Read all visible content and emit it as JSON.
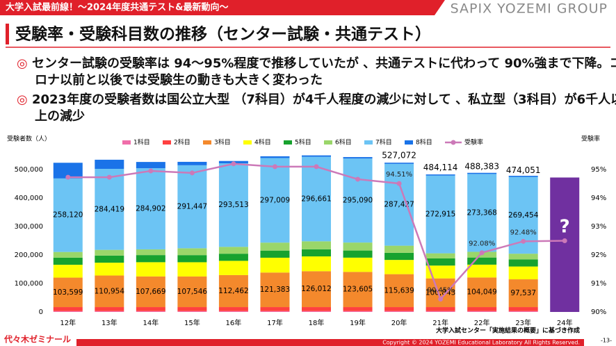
{
  "header": {
    "banner": "大学入試最前線！～2024年度共通テスト&最新動向～",
    "brand": "SAPIX YOZEMI GROUP"
  },
  "title": "受験率・受験科目数の推移（センター試験・共通テスト）",
  "bullets": [
    "センター試験の受験率は 94～95%程度で推移していたが 、共通テストに代わって 90%強まで下降。コロナ以前と以後では受験生の動きも大きく変わった",
    "2023年度の受験者数は国公立大型 （7科目）が4千人程度の減少に対して 、私立型（3科目）が6千人以上の減少"
  ],
  "chart_data": {
    "type": "bar",
    "stacked": true,
    "y_label": "受験者数（人）",
    "y2_label": "受験率",
    "categories": [
      "12年",
      "13年",
      "14年",
      "15年",
      "16年",
      "17年",
      "18年",
      "19年",
      "20年",
      "21年",
      "22年",
      "23年",
      "24年"
    ],
    "ylim": [
      0,
      560000
    ],
    "yticks": [
      0,
      {
        "value": 100000,
        "label": "100,000"
      },
      {
        "value": 200000,
        "label": "200,000"
      },
      {
        "value": 300000,
        "label": "300,000"
      },
      {
        "value": 400000,
        "label": "400,000"
      },
      {
        "value": 500000,
        "label": "500,000"
      }
    ],
    "y2lim": [
      90,
      95.6
    ],
    "y2ticks": [
      {
        "value": 90,
        "label": "90%"
      },
      {
        "value": 91,
        "label": "91%"
      },
      {
        "value": 92,
        "label": "92%"
      },
      {
        "value": 93,
        "label": "93%"
      },
      {
        "value": 94,
        "label": "94%"
      },
      {
        "value": 95,
        "label": "95%"
      }
    ],
    "series": [
      {
        "name": "1科目",
        "color": "#f06eaa",
        "values": [
          3000,
          3000,
          3000,
          3000,
          3000,
          3000,
          3000,
          3000,
          3000,
          3000,
          3000,
          3000,
          null
        ]
      },
      {
        "name": "2科目",
        "color": "#ff4040",
        "values": [
          14000,
          14000,
          14000,
          14000,
          14000,
          14000,
          14000,
          14000,
          14000,
          14000,
          14000,
          14000,
          null
        ]
      },
      {
        "name": "3科目",
        "color": "#f4892c",
        "values": [
          103599,
          110954,
          107669,
          107546,
          112462,
          121383,
          126012,
          123605,
          115639,
          100843,
          104049,
          97537,
          null
        ],
        "value_labels": [
          "103,599",
          "110,954",
          "107,669",
          "107,546",
          "112,462",
          "121,383",
          "126,012",
          "123,605",
          "115,639",
          "100,843",
          "104,049",
          "97,537",
          null
        ]
      },
      {
        "name": "4科目",
        "color": "#ffff00",
        "values": [
          45000,
          45000,
          50000,
          50000,
          50000,
          52000,
          52000,
          50000,
          50000,
          45000,
          45000,
          45000,
          null
        ]
      },
      {
        "name": "5科目",
        "color": "#17a22e",
        "values": [
          25000,
          25000,
          25000,
          25000,
          25000,
          25000,
          25000,
          25000,
          25000,
          25000,
          25000,
          25000,
          null
        ]
      },
      {
        "name": "6科目",
        "color": "#9ad66a",
        "values": [
          20000,
          20000,
          20000,
          24000,
          24000,
          28000,
          28000,
          28000,
          25000,
          18000,
          20000,
          20000,
          null
        ]
      },
      {
        "name": "7科目",
        "color": "#6cc4f4",
        "values": [
          258120,
          284419,
          284902,
          291447,
          293513,
          297009,
          296661,
          295090,
          287427,
          272915,
          273368,
          269454,
          null
        ],
        "value_labels": [
          "258,120",
          "284,419",
          "284,902",
          "291,447",
          "293,513",
          "297,009",
          "296,661",
          "295,090",
          "287,427",
          "272,915",
          "273,368",
          "269,454",
          null
        ]
      },
      {
        "name": "8科目",
        "color": "#1a73e8",
        "values": [
          55000,
          32000,
          22000,
          12000,
          8000,
          6000,
          5000,
          5000,
          4000,
          4000,
          4000,
          4000,
          null
        ]
      },
      {
        "name": "受験率",
        "color": "#cc79b8",
        "axis": "y2",
        "type": "line",
        "values": [
          94.73,
          94.73,
          94.95,
          94.88,
          95.2,
          95.1,
          95.1,
          94.66,
          94.51,
          90.45,
          92.08,
          92.48,
          92.5
        ],
        "value_labels": [
          null,
          null,
          null,
          null,
          null,
          null,
          null,
          null,
          "94.51%",
          "90.45%",
          "92.08%",
          "92.48%",
          null
        ]
      }
    ],
    "totals": {
      "values": [
        null,
        null,
        null,
        null,
        null,
        null,
        null,
        null,
        527072,
        484114,
        488383,
        474051,
        null
      ],
      "value_labels": [
        null,
        null,
        null,
        null,
        null,
        null,
        null,
        null,
        "527,072",
        "484,114",
        "488,383",
        "474,051",
        null
      ]
    },
    "forecast": {
      "value": 472000,
      "label": "?",
      "color": "#7030a0"
    }
  },
  "source": "大学入試センター「実施結果の概要」に基づき作成",
  "footer": {
    "logo": "代々木ゼミナール",
    "copyright": "Copyright © 2024 YOZEMI Educational Laboratory All Rights Reserved.",
    "page": "-13-"
  }
}
